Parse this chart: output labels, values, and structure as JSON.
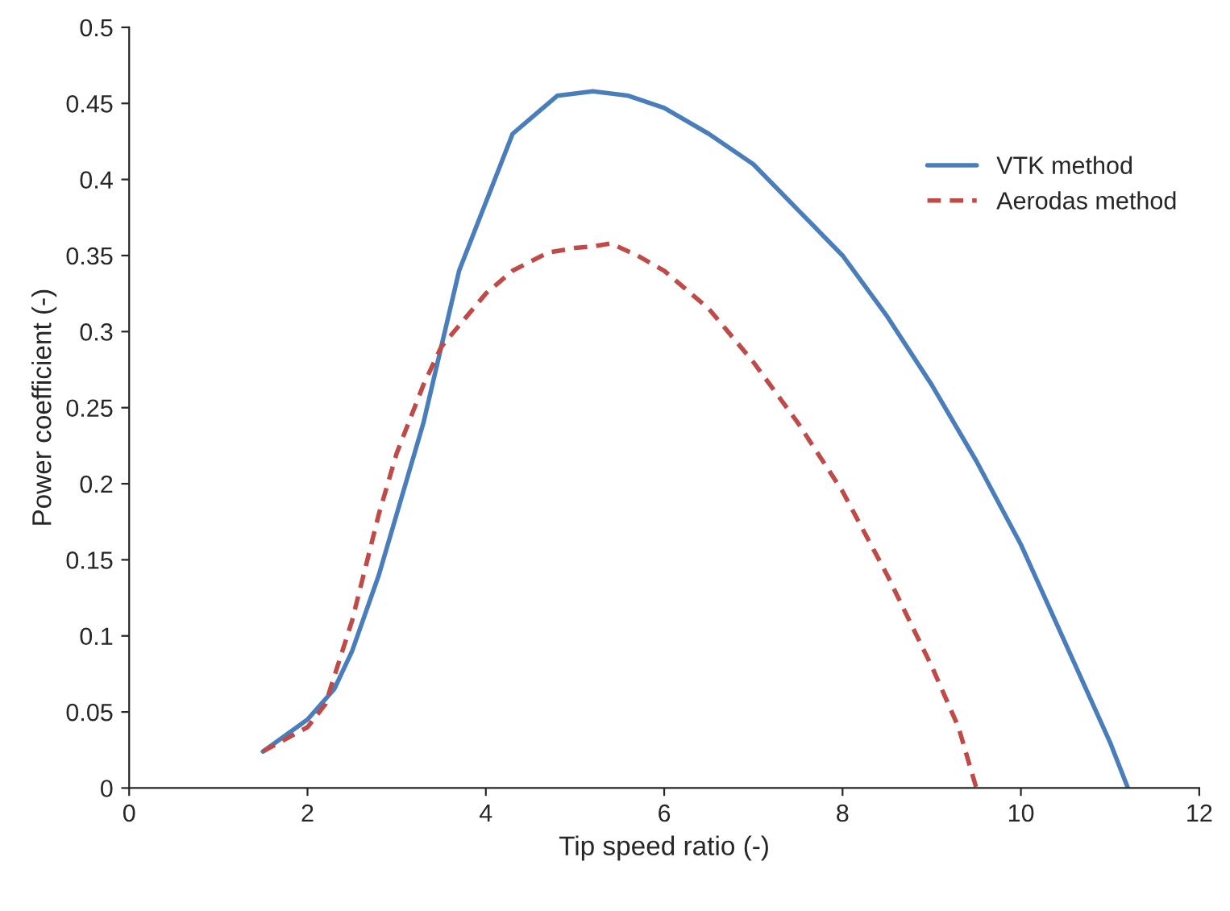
{
  "chart_data": {
    "type": "line",
    "xlabel": "Tip speed ratio (-)",
    "ylabel": "Power coefficient (-)",
    "xlim": [
      0,
      12
    ],
    "xticks": [
      0,
      2,
      4,
      6,
      8,
      10,
      12
    ],
    "ylim": [
      0,
      0.5
    ],
    "yticks": [
      0,
      0.05,
      0.1,
      0.15,
      0.2,
      0.25,
      0.3,
      0.35,
      0.4,
      0.45,
      0.5
    ],
    "grid": false,
    "legend": "top right",
    "marker": "none",
    "series": [
      {
        "name": "VTK method",
        "color": "#4a7ebb",
        "line_style": "solid",
        "x": [
          1.5,
          2.0,
          2.3,
          2.5,
          2.8,
          3.0,
          3.3,
          3.5,
          3.7,
          4.0,
          4.3,
          4.5,
          4.8,
          5.2,
          5.6,
          6.0,
          6.5,
          7.0,
          7.5,
          8.0,
          8.5,
          9.0,
          9.5,
          10.0,
          10.5,
          11.0,
          11.2
        ],
        "values": [
          0.024,
          0.045,
          0.065,
          0.09,
          0.14,
          0.18,
          0.24,
          0.29,
          0.34,
          0.385,
          0.43,
          0.44,
          0.455,
          0.458,
          0.455,
          0.447,
          0.43,
          0.41,
          0.38,
          0.35,
          0.31,
          0.265,
          0.215,
          0.16,
          0.095,
          0.03,
          0.0
        ]
      },
      {
        "name": "Aerodas method",
        "color": "#be4b48",
        "line_style": "dashed",
        "x": [
          1.5,
          2.0,
          2.2,
          2.5,
          2.8,
          3.0,
          3.3,
          3.5,
          4.0,
          4.3,
          4.7,
          5.0,
          5.2,
          5.4,
          5.7,
          6.0,
          6.5,
          7.0,
          7.5,
          8.0,
          8.5,
          9.0,
          9.3,
          9.5
        ],
        "values": [
          0.024,
          0.04,
          0.055,
          0.11,
          0.18,
          0.22,
          0.265,
          0.29,
          0.325,
          0.34,
          0.352,
          0.355,
          0.356,
          0.358,
          0.35,
          0.34,
          0.315,
          0.28,
          0.24,
          0.195,
          0.14,
          0.08,
          0.04,
          0.0
        ]
      }
    ]
  }
}
